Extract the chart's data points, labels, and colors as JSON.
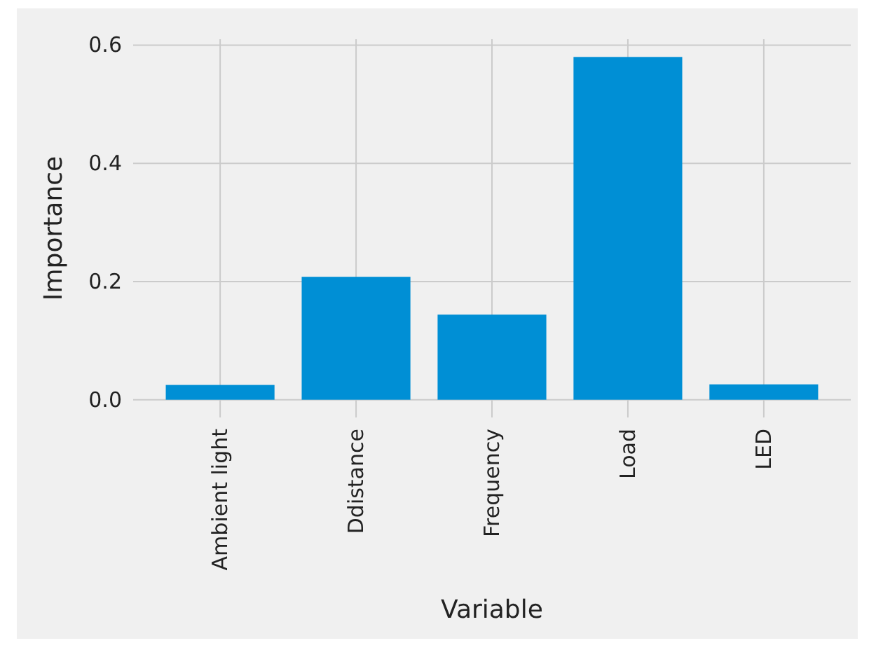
{
  "chart_data": {
    "type": "bar",
    "xlabel": "Variable",
    "ylabel": "Importance",
    "categories": [
      "Ambient light",
      "Ddistance",
      "Frequency",
      "Load",
      "LED"
    ],
    "values": [
      0.025,
      0.208,
      0.144,
      0.58,
      0.026
    ],
    "color": "#008fd5",
    "ylim": [
      -0.03,
      0.61
    ],
    "yticks": [
      {
        "value": 0,
        "label": "0.0"
      },
      {
        "value": 0.2,
        "label": "0.2"
      },
      {
        "value": 0.4,
        "label": "0.4"
      },
      {
        "value": 0.6,
        "label": "0.6"
      }
    ],
    "grid": true
  }
}
